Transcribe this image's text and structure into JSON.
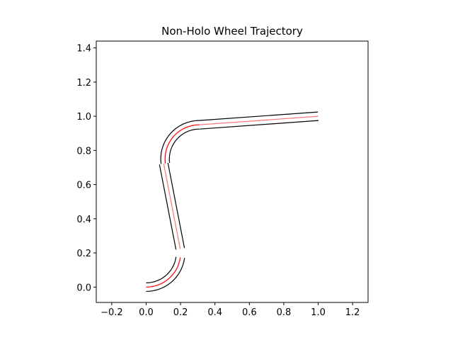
{
  "chart_data": {
    "type": "line",
    "title": "Non-Holo Wheel Trajectory",
    "xlabel": "",
    "ylabel": "",
    "xlim": [
      -0.29,
      1.29
    ],
    "ylim": [
      -0.09,
      1.44
    ],
    "grid": false,
    "aspect": "equal",
    "xticks": [
      {
        "value": -0.2,
        "label": "−0.2"
      },
      {
        "value": 0.0,
        "label": "0.0"
      },
      {
        "value": 0.2,
        "label": "0.2"
      },
      {
        "value": 0.4,
        "label": "0.4"
      },
      {
        "value": 0.6,
        "label": "0.6"
      },
      {
        "value": 0.8,
        "label": "0.8"
      },
      {
        "value": 1.0,
        "label": "1.0"
      },
      {
        "value": 1.2,
        "label": "1.2"
      }
    ],
    "yticks": [
      {
        "value": 0.0,
        "label": "0.0"
      },
      {
        "value": 0.2,
        "label": "0.2"
      },
      {
        "value": 0.4,
        "label": "0.4"
      },
      {
        "value": 0.6,
        "label": "0.6"
      },
      {
        "value": 0.8,
        "label": "0.8"
      },
      {
        "value": 1.0,
        "label": "1.0"
      },
      {
        "value": 1.2,
        "label": "1.2"
      },
      {
        "value": 1.4,
        "label": "1.4"
      }
    ],
    "wheel_offset": 0.025,
    "centerline_color": "#ff0000",
    "wheel_color": "#000000",
    "segments": [
      {
        "kind": "arc",
        "center": [
          0.0,
          0.2
        ],
        "radius": 0.2,
        "start_deg": -90,
        "end_deg": -7.5
      },
      {
        "kind": "line",
        "start": [
          0.198,
          0.224
        ],
        "end": [
          0.102,
          0.722
        ]
      },
      {
        "kind": "arc",
        "center": [
          0.31,
          0.75
        ],
        "radius": 0.2,
        "start_deg": 187.5,
        "end_deg": 90
      },
      {
        "kind": "line",
        "start": [
          0.31,
          0.95
        ],
        "end": [
          1.0,
          1.0
        ]
      }
    ]
  }
}
